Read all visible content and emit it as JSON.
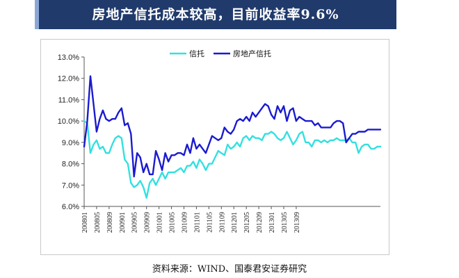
{
  "header": {
    "title": "房地产信托成本较高，目前收益率9.6%"
  },
  "footer": {
    "source": "资料来源：WIND、国泰君安证券研究"
  },
  "colors": {
    "title_bg": "#203a6b",
    "series_trust": "#33e0e0",
    "series_realestate": "#1a1ad0"
  },
  "chart_data": {
    "type": "line",
    "legend_position": "top-center",
    "grid": false,
    "ylim": [
      6.0,
      13.0
    ],
    "y_ticks": [
      "6.0%",
      "7.0%",
      "8.0%",
      "9.0%",
      "10.0%",
      "11.0%",
      "12.0%",
      "13.0%"
    ],
    "x_tick_labels": [
      "200801",
      "200805",
      "200809",
      "200901",
      "200905",
      "200909",
      "201001",
      "201005",
      "201009",
      "201101",
      "201105",
      "201109",
      "201201",
      "201205",
      "201209",
      "201301",
      "201305",
      "201309"
    ],
    "x_start": "2008-01",
    "x_end": "2013-10",
    "series": [
      {
        "name": "信托",
        "color": "#33e0e0",
        "values": [
          10.0,
          9.9,
          8.5,
          8.9,
          9.1,
          8.7,
          8.8,
          8.5,
          8.5,
          8.9,
          9.2,
          9.3,
          9.2,
          8.2,
          8.0,
          7.1,
          6.9,
          7.0,
          7.2,
          6.9,
          6.4,
          7.1,
          7.3,
          7.0,
          7.3,
          7.6,
          7.3,
          7.6,
          7.6,
          7.6,
          7.7,
          7.8,
          7.6,
          7.9,
          7.9,
          8.1,
          7.8,
          8.2,
          8.0,
          7.7,
          8.0,
          8.0,
          8.3,
          8.6,
          8.5,
          8.4,
          8.9,
          8.7,
          8.8,
          9.0,
          8.8,
          9.2,
          9.3,
          9.1,
          9.3,
          9.2,
          9.2,
          9.1,
          9.4,
          9.4,
          9.5,
          9.4,
          9.2,
          9.1,
          9.2,
          9.5,
          9.2,
          8.9,
          9.1,
          9.4,
          9.5,
          9.0,
          9.0,
          8.8,
          9.1,
          9.1,
          9.0,
          9.1,
          9.0,
          9.1,
          9.1,
          9.2,
          9.1,
          9.1,
          9.1,
          9.2,
          9.0,
          9.0,
          8.5,
          8.8,
          8.9,
          8.9,
          8.7,
          8.7,
          8.8,
          8.8
        ]
      },
      {
        "name": "房地产信托",
        "color": "#1a1ad0",
        "values": [
          8.8,
          10.0,
          12.1,
          10.8,
          9.5,
          10.1,
          10.5,
          10.1,
          10.0,
          10.1,
          10.1,
          10.4,
          10.6,
          9.8,
          9.9,
          9.4,
          7.4,
          8.5,
          8.3,
          7.6,
          8.0,
          7.5,
          7.5,
          8.6,
          8.2,
          7.7,
          8.5,
          8.1,
          8.4,
          8.4,
          8.5,
          8.5,
          8.4,
          8.9,
          8.5,
          9.2,
          8.7,
          8.9,
          8.7,
          8.5,
          8.9,
          9.3,
          9.2,
          9.1,
          9.2,
          9.7,
          9.5,
          9.4,
          9.6,
          10.0,
          10.1,
          10.0,
          10.2,
          10.0,
          10.4,
          10.2,
          10.4,
          10.6,
          10.8,
          10.7,
          10.3,
          10.1,
          10.7,
          10.4,
          10.7,
          10.0,
          10.5,
          10.6,
          10.0,
          10.2,
          10.1,
          10.0,
          10.0,
          10.0,
          9.8,
          9.9,
          9.7,
          9.7,
          9.7,
          9.7,
          9.9,
          10.0,
          10.0,
          9.9,
          9.0,
          9.2,
          9.4,
          9.4,
          9.5,
          9.5,
          9.5,
          9.6,
          9.6,
          9.6,
          9.6,
          9.6
        ]
      }
    ]
  }
}
